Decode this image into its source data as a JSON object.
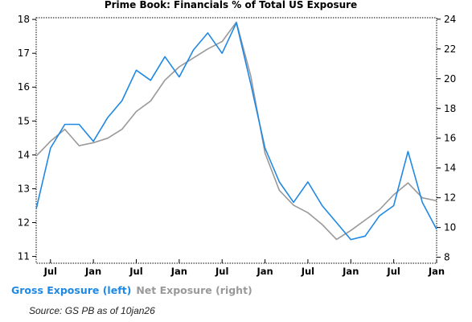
{
  "chart_data": {
    "type": "line",
    "title": "Prime Book: Financials % of Total US Exposure",
    "x_tick_labels": [
      "Jul",
      "Jan",
      "Jul",
      "Jan",
      "Jul",
      "Jan",
      "Jul",
      "Jan",
      "Jul",
      "Jan"
    ],
    "y_left": {
      "ticks": [
        11,
        12,
        13,
        14,
        15,
        16,
        17,
        18
      ],
      "ylim": [
        10.8,
        18.05
      ]
    },
    "y_right": {
      "ticks": [
        8,
        10,
        12,
        14,
        16,
        18,
        20,
        22,
        24
      ],
      "ylim": [
        7.6,
        24.1
      ]
    },
    "grid": false,
    "legend": [
      {
        "name": "Gross Exposure (left)",
        "color": "#1e88e5"
      },
      {
        "name": "Net Exposure (right)",
        "color": "#999999"
      }
    ],
    "x_period_count": 56,
    "series": [
      {
        "name": "Gross Exposure (left)",
        "axis": "left",
        "color": "#1e88e5",
        "x": [
          0,
          2,
          4,
          6,
          8,
          10,
          12,
          14,
          16,
          18,
          20,
          22,
          24,
          26,
          28,
          30,
          32,
          34,
          36,
          38,
          40,
          42,
          44,
          46,
          48,
          50,
          52,
          54,
          56
        ],
        "values": [
          12.4,
          14.2,
          14.9,
          14.9,
          14.4,
          15.1,
          15.6,
          16.5,
          16.2,
          16.9,
          16.3,
          17.1,
          17.6,
          17.0,
          17.9,
          16.1,
          14.2,
          13.2,
          12.6,
          13.2,
          12.5,
          12.0,
          11.5,
          11.6,
          12.2,
          12.5,
          14.1,
          12.6,
          11.8
        ]
      },
      {
        "name": "Net Exposure (right)",
        "axis": "right",
        "color": "#999999",
        "x": [
          0,
          2,
          4,
          6,
          8,
          10,
          12,
          14,
          16,
          18,
          20,
          22,
          24,
          26,
          28,
          30,
          32,
          34,
          36,
          38,
          40,
          42,
          44,
          46,
          48,
          50,
          52,
          54,
          56
        ],
        "values": [
          14.8,
          15.8,
          16.6,
          15.5,
          15.7,
          16.0,
          16.6,
          17.8,
          18.5,
          19.9,
          20.8,
          21.4,
          22.0,
          22.5,
          23.8,
          20.2,
          15.0,
          12.5,
          11.5,
          11.0,
          10.2,
          9.2,
          9.8,
          10.5,
          11.2,
          12.2,
          13.0,
          12.0,
          11.8
        ]
      }
    ]
  },
  "source": "Source: GS PB as of 10jan26"
}
